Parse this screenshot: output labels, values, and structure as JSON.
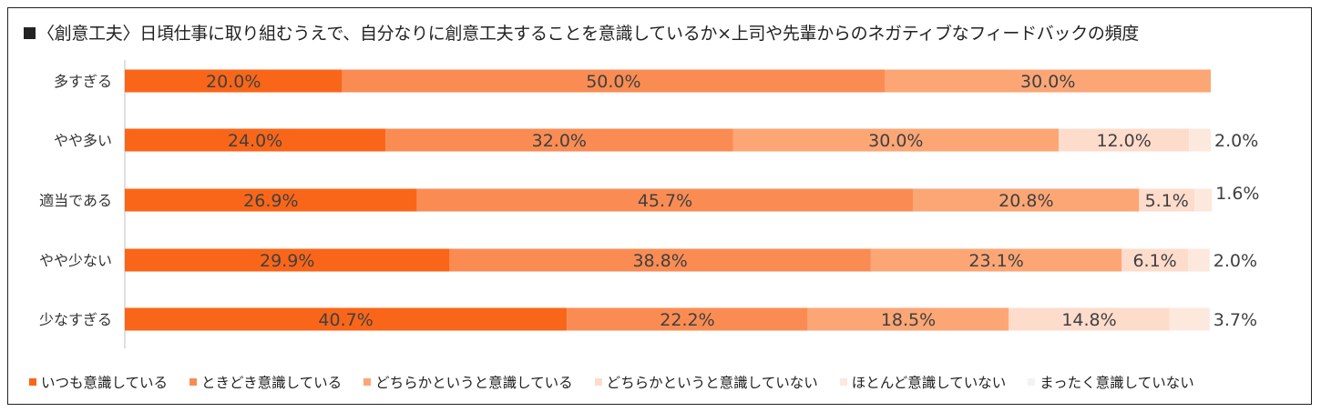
{
  "title": "〈創意工夫〉日頃仕事に取り組むうえで、自分なりに創意工夫することを意識しているか×上司や先輩からのネガティブなフィードバックの頻度",
  "colors": [
    "#fa6619",
    "#fa8c53",
    "#fca676",
    "#fddccc",
    "#fde8de",
    "#f3f3f3"
  ],
  "chart_data": {
    "type": "bar",
    "orientation": "horizontal",
    "stacked": true,
    "percent": true,
    "title": "〈創意工夫〉日頃仕事に取り組むうえで、自分なりに創意工夫することを意識しているか×上司や先輩からのネガティブなフィードバックの頻度",
    "categories": [
      "多すぎる",
      "やや多い",
      "適当である",
      "やや少ない",
      "少なすぎる"
    ],
    "xlim": [
      0,
      100
    ],
    "legend_position": "bottom",
    "series": [
      {
        "name": "いつも意識している",
        "values": [
          20.0,
          24.0,
          26.9,
          29.9,
          40.7
        ],
        "labels": [
          "20.0%",
          "24.0%",
          "26.9%",
          "29.9%",
          "40.7%"
        ]
      },
      {
        "name": "ときどき意識している",
        "values": [
          50.0,
          32.0,
          45.7,
          38.8,
          22.2
        ],
        "labels": [
          "50.0%",
          "32.0%",
          "45.7%",
          "38.8%",
          "22.2%"
        ]
      },
      {
        "name": "どちらかというと意識している",
        "values": [
          30.0,
          30.0,
          20.8,
          23.1,
          18.5
        ],
        "labels": [
          "30.0%",
          "30.0%",
          "20.8%",
          "23.1%",
          "18.5%"
        ]
      },
      {
        "name": "どちらかというと意識していない",
        "values": [
          0,
          12.0,
          5.1,
          6.1,
          14.8
        ],
        "labels": [
          "",
          "12.0%",
          "5.1%",
          "6.1%",
          "14.8%"
        ]
      },
      {
        "name": "ほとんど意識していない",
        "values": [
          0,
          2.0,
          1.6,
          2.0,
          3.7
        ],
        "labels": [
          "",
          "2.0%",
          "1.6%",
          "2.0%",
          "3.7%"
        ]
      },
      {
        "name": "まったく意識していない",
        "values": [
          0,
          0,
          0,
          0,
          0
        ],
        "labels": [
          "",
          "",
          "",
          "",
          ""
        ]
      }
    ]
  }
}
